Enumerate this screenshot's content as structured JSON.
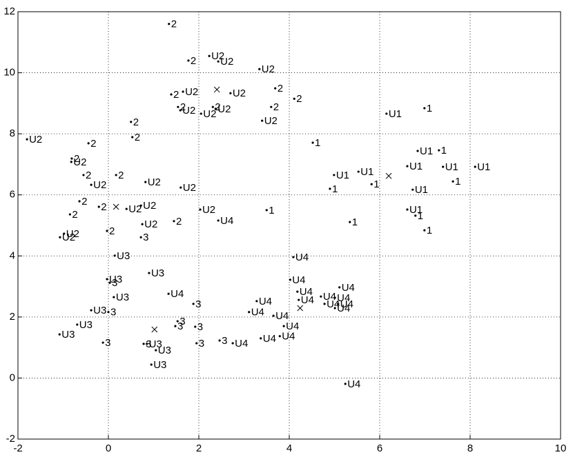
{
  "chart_data": {
    "type": "scatter",
    "xlim": [
      -2,
      10
    ],
    "ylim": [
      -2,
      12
    ],
    "xticks": [
      -2,
      0,
      2,
      4,
      6,
      8,
      10
    ],
    "yticks": [
      -2,
      0,
      2,
      4,
      6,
      8,
      10,
      12
    ],
    "grid": true,
    "color": "#000000",
    "points": {
      "x": [
        1.34,
        1.77,
        2.23,
        2.43,
        3.34,
        1.39,
        1.65,
        2.7,
        3.69,
        4.11,
        1.54,
        1.59,
        2.05,
        2.31,
        2.37,
        3.6,
        3.4,
        6.99,
        6.15,
        0.5,
        0.53,
        -1.8,
        -0.44,
        4.52,
        6.84,
        7.31,
        -0.81,
        -0.82,
        6.61,
        7.4,
        8.11,
        5.53,
        4.99,
        5.82,
        4.9,
        7.62,
        6.73,
        -0.55,
        -0.38,
        0.17,
        0.82,
        1.6,
        -0.64,
        -0.21,
        0.4,
        0.72,
        2.03,
        3.5,
        6.61,
        6.79,
        0.75,
        1.45,
        2.43,
        5.34,
        6.99,
        -0.85,
        -0.98,
        -1.07,
        -0.03,
        0.72,
        0.14,
        4.09,
        0.9,
        -0.03,
        0.03,
        4.02,
        1.33,
        0.12,
        4.18,
        5.11,
        1.88,
        4.21,
        4.7,
        4.78,
        5.01,
        5.01,
        5.08,
        3.28,
        3.11,
        3.65,
        -0.38,
        0.0,
        3.88,
        -0.69,
        1.53,
        1.48,
        1.92,
        -1.08,
        3.79,
        3.37,
        2.46,
        2.75,
        -0.12,
        1.95,
        0.85,
        0.78,
        1.05,
        0.95,
        5.24
      ],
      "y": [
        11.6,
        10.4,
        10.55,
        10.37,
        10.12,
        9.29,
        9.38,
        9.33,
        9.49,
        9.15,
        8.88,
        8.77,
        8.66,
        8.88,
        8.82,
        8.88,
        8.43,
        8.84,
        8.66,
        8.39,
        7.89,
        7.82,
        7.69,
        7.71,
        7.44,
        7.46,
        7.19,
        7.08,
        6.94,
        6.92,
        6.92,
        6.76,
        6.65,
        6.35,
        6.2,
        6.44,
        6.17,
        6.65,
        6.33,
        6.65,
        6.42,
        6.24,
        5.79,
        5.61,
        5.54,
        5.65,
        5.52,
        5.5,
        5.52,
        5.32,
        5.04,
        5.14,
        5.16,
        5.11,
        4.84,
        5.36,
        4.73,
        4.61,
        4.82,
        4.61,
        4.01,
        3.96,
        3.44,
        3.24,
        3.12,
        3.22,
        2.76,
        2.65,
        2.83,
        2.97,
        2.43,
        2.56,
        2.67,
        2.43,
        2.63,
        2.29,
        2.43,
        2.52,
        2.16,
        2.04,
        2.22,
        2.16,
        1.7,
        1.75,
        1.86,
        1.7,
        1.68,
        1.43,
        1.37,
        1.3,
        1.23,
        1.14,
        1.16,
        1.14,
        1.12,
        1.12,
        0.91,
        0.44,
        -0.19
      ],
      "labels": [
        "2",
        "2",
        "U2",
        "U2",
        "U2",
        "2",
        "U2",
        "U2",
        "2",
        "2",
        "2",
        "U2",
        "U2",
        "2",
        "U2",
        "2",
        "U2",
        "1",
        "U1",
        "2",
        "2",
        "U2",
        "2",
        "1",
        "U1",
        "1",
        "2",
        "U2",
        "U1",
        "U1",
        "U1",
        "U1",
        "U1",
        "1",
        "1",
        "1",
        "U1",
        "2",
        "U2",
        "2",
        "U2",
        "U2",
        "2",
        "2",
        "U2",
        "U2",
        "U2",
        "1",
        "U1",
        "1",
        "U2",
        "2",
        "U4",
        "1",
        "1",
        "2",
        "U2",
        "U2",
        "2",
        "3",
        "U3",
        "U4",
        "U3",
        "U3",
        "3",
        "U4",
        "U4",
        "U3",
        "U4",
        "U4",
        "3",
        "U4",
        "U4",
        "U4",
        "U4",
        "U4",
        "U4",
        "U4",
        "U4",
        "U4",
        "U3",
        "3",
        "U4",
        "U3",
        "3",
        "3",
        "3",
        "U3",
        "U4",
        "U4",
        "3",
        "U4",
        "3",
        "3",
        "U3",
        "3",
        "U3",
        "U3",
        "U4"
      ]
    },
    "centroids": {
      "x": [
        2.4,
        6.2,
        0.17,
        4.24,
        1.02
      ],
      "y": [
        9.45,
        6.62,
        5.61,
        2.29,
        1.59
      ]
    }
  }
}
